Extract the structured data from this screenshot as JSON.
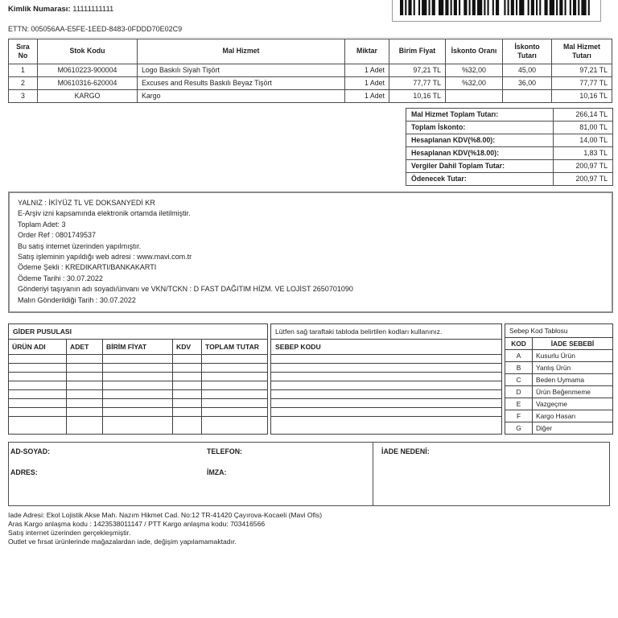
{
  "header": {
    "kimlik_label": "Kimlik Numarası:",
    "kimlik_value": "11111111111",
    "ettn_line": "ETTN: 005056AA-E5FE-1EED-8483-0FDDD70E02C9"
  },
  "items_table": {
    "headers": {
      "sira": "Sıra No",
      "stok": "Stok Kodu",
      "mal": "Mal Hizmet",
      "miktar": "Miktar",
      "birim": "Birim Fiyat",
      "isk_oran": "İskonto Oranı",
      "isk_tutar": "İskonto Tutarı",
      "tutar": "Mal Hizmet Tutarı"
    },
    "rows": [
      {
        "sira": "1",
        "stok": "M0610223-900004",
        "mal": "Logo Baskılı Siyah Tişört",
        "miktar": "1 Adet",
        "birim": "97,21 TL",
        "isk_oran": "%32,00",
        "isk_tutar": "45,00",
        "tutar": "97,21 TL"
      },
      {
        "sira": "2",
        "stok": "M0610316-620004",
        "mal": "Excuses and Results Baskılı Beyaz Tişört",
        "miktar": "1 Adet",
        "birim": "77,77 TL",
        "isk_oran": "%32,00",
        "isk_tutar": "36,00",
        "tutar": "77,77 TL"
      },
      {
        "sira": "3",
        "stok": "KARGO",
        "mal": "Kargo",
        "miktar": "1 Adet",
        "birim": "10,16 TL",
        "isk_oran": "",
        "isk_tutar": "",
        "tutar": "10,16 TL"
      }
    ]
  },
  "totals": {
    "rows": [
      {
        "label": "Mal Hizmet Toplam Tutarı:",
        "value": "266,14 TL"
      },
      {
        "label": "Toplam İskonto:",
        "value": "81,00 TL"
      },
      {
        "label": "Hesaplanan KDV(%8.00):",
        "value": "14,00 TL"
      },
      {
        "label": "Hesaplanan KDV(%18.00):",
        "value": "1,83 TL"
      },
      {
        "label": "Vergiler Dahil Toplam Tutar:",
        "value": "200,97 TL"
      },
      {
        "label": "Ödenecek Tutar:",
        "value": "200,97 TL"
      }
    ]
  },
  "notes": {
    "lines": [
      "YALNIZ : İKİYÜZ TL VE DOKSANYEDİ KR",
      "E-Arşiv izni kapsamında elektronik ortamda iletilmiştir.",
      "Toplam Adet: 3",
      "Order Ref : 0801749537",
      "Bu satış internet üzerinden yapılmıştır.",
      "Satış işleminin yapıldığı web adresi : www.mavi.com.tr",
      "Ödeme Şekli : KREDIKARTI/BANKAKARTI",
      "Ödeme Tarihi : 30.07.2022",
      "Gönderiyi taşıyanın adı soyadı/ünvanı ve VKN/TCKN : D FAST DAĞITIM HİZM. VE LOJİST 2650701090",
      "Malın Gönderildiği Tarih : 30.07.2022"
    ]
  },
  "gider": {
    "title": "GİDER PUSULASI",
    "headers": [
      "ÜRÜN ADI",
      "ADET",
      "BİRİM FİYAT",
      "KDV",
      "TOPLAM TUTAR"
    ],
    "empty_row_count": 8
  },
  "sebep_kodu": {
    "instruction": "Lütfen sağ taraftaki tabloda belirtilen kodları kullanınız.",
    "header": "SEBEP KODU",
    "empty_row_count": 8
  },
  "sebep_tablosu": {
    "title": "Sebep Kod Tablosu",
    "headers": [
      "KOD",
      "İADE SEBEBİ"
    ],
    "rows": [
      [
        "A",
        "Kusurlu Ürün"
      ],
      [
        "B",
        "Yanlış Ürün"
      ],
      [
        "C",
        "Beden Uymama"
      ],
      [
        "D",
        "Ürün Beğenmeme"
      ],
      [
        "E",
        "Vazgeçme"
      ],
      [
        "F",
        "Kargo Hasarı"
      ],
      [
        "G",
        "Diğer"
      ]
    ]
  },
  "contact": {
    "ad_soyad": "AD-SOYAD:",
    "adres": "ADRES:",
    "telefon": "TELEFON:",
    "imza": "İMZA:",
    "iade_nedeni": "İADE NEDENİ:"
  },
  "footer": {
    "lines": [
      "Iade Adresi: Ekol Lojistik Akse Mah. Nazım Hikmet Cad. No:12 TR-41420 Çayırova-Kocaeli (Mavi Ofis)",
      "Aras Kargo anlaşma kodu : 1423538011147 / PTT Kargo anlaşma kodu: 703416566",
      "Satış internet üzerinden gerçekleşmiştir.",
      "Outlet ve fırsat ürünlerinde mağazalardan iade, değişim yapılamamaktadır."
    ]
  }
}
